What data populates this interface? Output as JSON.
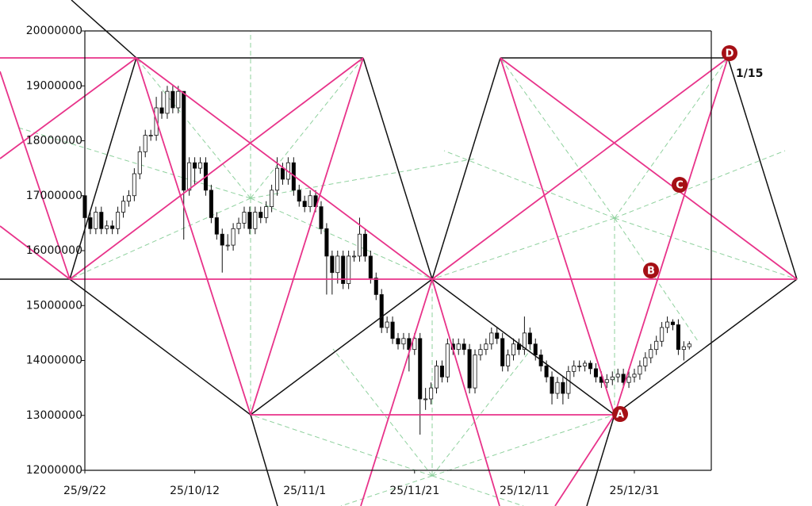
{
  "chart_data": {
    "type": "candlestick",
    "x": [
      "25/9/22",
      "25/9/23",
      "25/9/24",
      "25/9/25",
      "25/9/26",
      "25/9/27",
      "25/9/28",
      "25/9/29",
      "25/9/30",
      "25/10/1",
      "25/10/2",
      "25/10/3",
      "25/10/4",
      "25/10/5",
      "25/10/6",
      "25/10/7",
      "25/10/8",
      "25/10/9",
      "25/10/10",
      "25/10/11",
      "25/10/12",
      "25/10/13",
      "25/10/14",
      "25/10/15",
      "25/10/16",
      "25/10/17",
      "25/10/18",
      "25/10/19",
      "25/10/20",
      "25/10/21",
      "25/10/22",
      "25/10/23",
      "25/10/24",
      "25/10/25",
      "25/10/26",
      "25/10/27",
      "25/10/28",
      "25/10/29",
      "25/10/30",
      "25/10/31",
      "25/11/1",
      "25/11/2",
      "25/11/3",
      "25/11/4",
      "25/11/5",
      "25/11/6",
      "25/11/7",
      "25/11/8",
      "25/11/9",
      "25/11/10",
      "25/11/11",
      "25/11/12",
      "25/11/13",
      "25/11/14",
      "25/11/15",
      "25/11/16",
      "25/11/17",
      "25/11/18",
      "25/11/19",
      "25/11/20",
      "25/11/21",
      "25/11/22",
      "25/11/23",
      "25/11/24",
      "25/11/25",
      "25/11/26",
      "25/11/27",
      "25/11/28",
      "25/11/29",
      "25/11/30",
      "25/12/1",
      "25/12/2",
      "25/12/3",
      "25/12/4",
      "25/12/5",
      "25/12/6",
      "25/12/7",
      "25/12/8",
      "25/12/9",
      "25/12/10",
      "25/12/11",
      "25/12/12",
      "25/12/13",
      "25/12/14",
      "25/12/15",
      "25/12/16",
      "25/12/17",
      "25/12/18",
      "25/12/19",
      "25/12/20",
      "25/12/21",
      "25/12/22",
      "25/12/23",
      "25/12/24",
      "25/12/25",
      "25/12/26",
      "25/12/27",
      "25/12/28",
      "25/12/29",
      "25/12/30",
      "25/12/31",
      "26/1/1",
      "26/1/2",
      "26/1/3",
      "26/1/4",
      "26/1/5",
      "26/1/6",
      "26/1/7",
      "26/1/8",
      "26/1/9",
      "26/1/10"
    ],
    "open": [
      17000000,
      16600000,
      16400000,
      16700000,
      16400000,
      16450000,
      16400000,
      16700000,
      16900000,
      17000000,
      17400000,
      17800000,
      18100000,
      18100000,
      18600000,
      18500000,
      18900000,
      18600000,
      18900000,
      17100000,
      17600000,
      17500000,
      17600000,
      17100000,
      16600000,
      16300000,
      16100000,
      16100000,
      16400000,
      16500000,
      16700000,
      16400000,
      16700000,
      16600000,
      16800000,
      17100000,
      17500000,
      17300000,
      17600000,
      17100000,
      16900000,
      16800000,
      17000000,
      16800000,
      16400000,
      15900000,
      15600000,
      15900000,
      15400000,
      15900000,
      15900000,
      16300000,
      15900000,
      15500000,
      15200000,
      14600000,
      14700000,
      14400000,
      14300000,
      14400000,
      14200000,
      14400000,
      13300000,
      13300000,
      13500000,
      13900000,
      13700000,
      14300000,
      14200000,
      14300000,
      14200000,
      13500000,
      14100000,
      14200000,
      14300000,
      14500000,
      14400000,
      13900000,
      14100000,
      14300000,
      14200000,
      14500000,
      14300000,
      14100000,
      13900000,
      13700000,
      13400000,
      13600000,
      13400000,
      13800000,
      13900000,
      13900000,
      13950000,
      13850000,
      13700000,
      13600000,
      13650000,
      13700000,
      13750000,
      13600000,
      13700000,
      13750000,
      13900000,
      14050000,
      14200000,
      14350000,
      14600000,
      14700000,
      14650000,
      14200000,
      14250000
    ],
    "high": [
      17100000,
      16700000,
      16800000,
      16800000,
      16550000,
      16550000,
      16800000,
      17000000,
      17100000,
      17500000,
      17900000,
      18200000,
      18200000,
      18800000,
      18900000,
      19000000,
      19000000,
      19000000,
      18900000,
      17700000,
      17700000,
      17700000,
      17700000,
      17200000,
      16700000,
      16400000,
      16300000,
      16500000,
      16600000,
      16800000,
      16800000,
      16800000,
      16800000,
      16900000,
      17200000,
      17700000,
      17600000,
      17700000,
      17700000,
      17200000,
      17000000,
      17100000,
      17100000,
      16900000,
      16500000,
      16000000,
      16000000,
      16000000,
      16000000,
      16000000,
      16600000,
      16400000,
      16000000,
      15600000,
      15300000,
      14800000,
      14800000,
      14500000,
      14500000,
      14500000,
      14500000,
      14500000,
      13500000,
      13600000,
      14000000,
      14000000,
      14400000,
      14400000,
      14400000,
      14400000,
      14300000,
      14200000,
      14300000,
      14400000,
      14600000,
      14600000,
      14500000,
      14200000,
      14400000,
      14400000,
      14800000,
      14600000,
      14400000,
      14200000,
      14000000,
      13800000,
      13700000,
      13700000,
      13900000,
      14000000,
      14000000,
      14000000,
      14000000,
      13950000,
      13800000,
      13750000,
      13800000,
      13850000,
      13850000,
      13800000,
      13850000,
      14000000,
      14150000,
      14300000,
      14450000,
      14700000,
      14800000,
      14750000,
      14750000,
      14350000,
      14350000
    ],
    "low": [
      16500000,
      16300000,
      16300000,
      16300000,
      16300000,
      16300000,
      16300000,
      16600000,
      16800000,
      16900000,
      17300000,
      17700000,
      18000000,
      18000000,
      18400000,
      18400000,
      18500000,
      18500000,
      16200000,
      17000000,
      17200000,
      17400000,
      17000000,
      16500000,
      16200000,
      15600000,
      16000000,
      16000000,
      16300000,
      16400000,
      16300000,
      16300000,
      16500000,
      16500000,
      16700000,
      17000000,
      17200000,
      17200000,
      17000000,
      16800000,
      16700000,
      16700000,
      16700000,
      16300000,
      15200000,
      15200000,
      15400000,
      15300000,
      15300000,
      15800000,
      15800000,
      15800000,
      15400000,
      15100000,
      14500000,
      14500000,
      14300000,
      14200000,
      14200000,
      13800000,
      14100000,
      12650000,
      13100000,
      13200000,
      13400000,
      13600000,
      13600000,
      14100000,
      14100000,
      14100000,
      13400000,
      13400000,
      14000000,
      14100000,
      14200000,
      14300000,
      13800000,
      13800000,
      14000000,
      14100000,
      14100000,
      14200000,
      14000000,
      13800000,
      13600000,
      13200000,
      13300000,
      13200000,
      13300000,
      13700000,
      13800000,
      13800000,
      13750000,
      13600000,
      13500000,
      13500000,
      13550000,
      13600000,
      13500000,
      13500000,
      13600000,
      13650000,
      13800000,
      13950000,
      14100000,
      14250000,
      14500000,
      14550000,
      14100000,
      14000000,
      14200000
    ],
    "close": [
      16600000,
      16400000,
      16700000,
      16400000,
      16450000,
      16400000,
      16700000,
      16900000,
      17000000,
      17400000,
      17800000,
      18100000,
      18100000,
      18600000,
      18500000,
      18900000,
      18600000,
      18900000,
      17100000,
      17600000,
      17500000,
      17600000,
      17100000,
      16600000,
      16300000,
      16100000,
      16100000,
      16400000,
      16500000,
      16700000,
      16400000,
      16700000,
      16600000,
      16800000,
      17100000,
      17500000,
      17300000,
      17600000,
      17100000,
      16900000,
      16800000,
      17000000,
      16800000,
      16400000,
      15900000,
      15600000,
      15900000,
      15400000,
      15900000,
      15900000,
      16300000,
      15900000,
      15500000,
      15200000,
      14600000,
      14700000,
      14400000,
      14300000,
      14400000,
      14200000,
      14400000,
      13300000,
      13300000,
      13500000,
      13900000,
      13700000,
      14300000,
      14200000,
      14300000,
      14200000,
      13500000,
      14100000,
      14200000,
      14300000,
      14500000,
      14400000,
      13900000,
      14100000,
      14300000,
      14200000,
      14500000,
      14300000,
      14100000,
      13900000,
      13700000,
      13400000,
      13600000,
      13400000,
      13800000,
      13900000,
      13900000,
      13950000,
      13850000,
      13700000,
      13600000,
      13650000,
      13700000,
      13750000,
      13600000,
      13700000,
      13750000,
      13900000,
      14050000,
      14200000,
      14350000,
      14600000,
      14700000,
      14650000,
      14200000,
      14250000,
      14300000
    ],
    "up_color": "#ffffff",
    "down_color": "#000000",
    "xlim": [
      "25/9/22",
      "26/1/14"
    ],
    "xticks": [
      "25/9/22",
      "25/10/12",
      "25/11/1",
      "25/11/21",
      "25/12/11",
      "25/12/31"
    ],
    "ylim": [
      12000000,
      20000000
    ],
    "yticks": [
      12000000,
      13000000,
      14000000,
      15000000,
      16000000,
      17000000,
      18000000,
      19000000,
      20000000
    ],
    "annotations": [
      "A",
      "B",
      "C",
      "D",
      "1/15"
    ]
  }
}
